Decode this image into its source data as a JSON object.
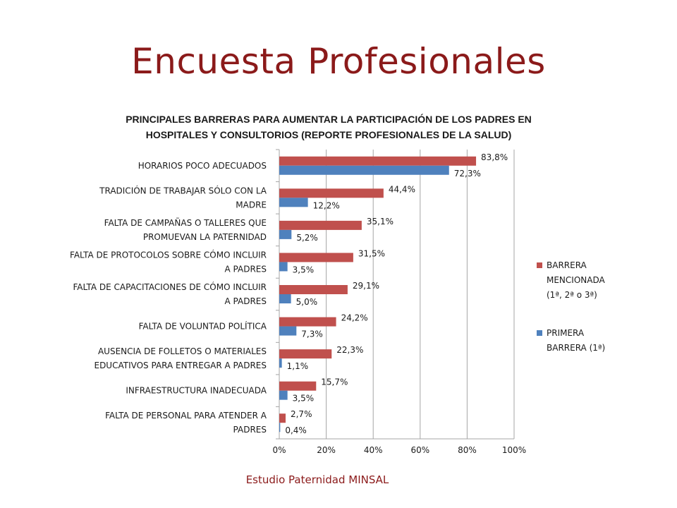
{
  "slide": {
    "title": "Encuesta Profesionales",
    "footer": "Estudio Paternidad MINSAL"
  },
  "colors": {
    "title": "#8b1a1a",
    "series_mentioned": "#c0504d",
    "series_first": "#4f81bd",
    "grid": "#a6a6a6",
    "text": "#1a1a1a"
  },
  "chart_data": {
    "type": "bar",
    "orientation": "horizontal",
    "title_lines": [
      "PRINCIPALES BARRERAS PARA AUMENTAR LA PARTICIPACIÓN DE LOS PADRES EN",
      "HOSPITALES Y CONSULTORIOS (REPORTE PROFESIONALES DE LA SALUD)"
    ],
    "categories": [
      [
        "HORARIOS POCO ADECUADOS"
      ],
      [
        "TRADICIÓN DE TRABAJAR SÓLO CON LA",
        "MADRE"
      ],
      [
        "FALTA DE CAMPAÑAS O TALLERES QUE",
        "PROMUEVAN LA PATERNIDAD"
      ],
      [
        "FALTA DE PROTOCOLOS SOBRE CÓMO INCLUIR",
        "A PADRES"
      ],
      [
        "FALTA DE CAPACITACIONES DE CÓMO INCLUIR",
        "A PADRES"
      ],
      [
        "FALTA DE VOLUNTAD POLÍTICA"
      ],
      [
        "AUSENCIA DE FOLLETOS O MATERIALES",
        "EDUCATIVOS PARA ENTREGAR A PADRES"
      ],
      [
        "INFRAESTRUCTURA INADECUADA"
      ],
      [
        "FALTA DE PERSONAL PARA ATENDER A",
        "PADRES"
      ]
    ],
    "series": [
      {
        "name_lines": [
          "BARRERA",
          "MENCIONADA",
          "(1ª, 2ª o 3ª)"
        ],
        "values": [
          83.8,
          44.4,
          35.1,
          31.5,
          29.1,
          24.2,
          22.3,
          15.7,
          2.7
        ],
        "labels": [
          "83,8%",
          "44,4%",
          "35,1%",
          "31,5%",
          "29,1%",
          "24,2%",
          "22,3%",
          "15,7%",
          "2,7%"
        ]
      },
      {
        "name_lines": [
          "PRIMERA",
          "BARRERA (1ª)"
        ],
        "values": [
          72.3,
          12.2,
          5.2,
          3.5,
          5.0,
          7.3,
          1.1,
          3.5,
          0.4
        ],
        "labels": [
          "72,3%",
          "12,2%",
          "5,2%",
          "3,5%",
          "5,0%",
          "7,3%",
          "1,1%",
          "3,5%",
          "0,4%"
        ]
      }
    ],
    "xlim": [
      0,
      100
    ],
    "xticks": [
      "0%",
      "20%",
      "40%",
      "60%",
      "80%",
      "100%"
    ],
    "grid": true,
    "legend_position": "right"
  }
}
